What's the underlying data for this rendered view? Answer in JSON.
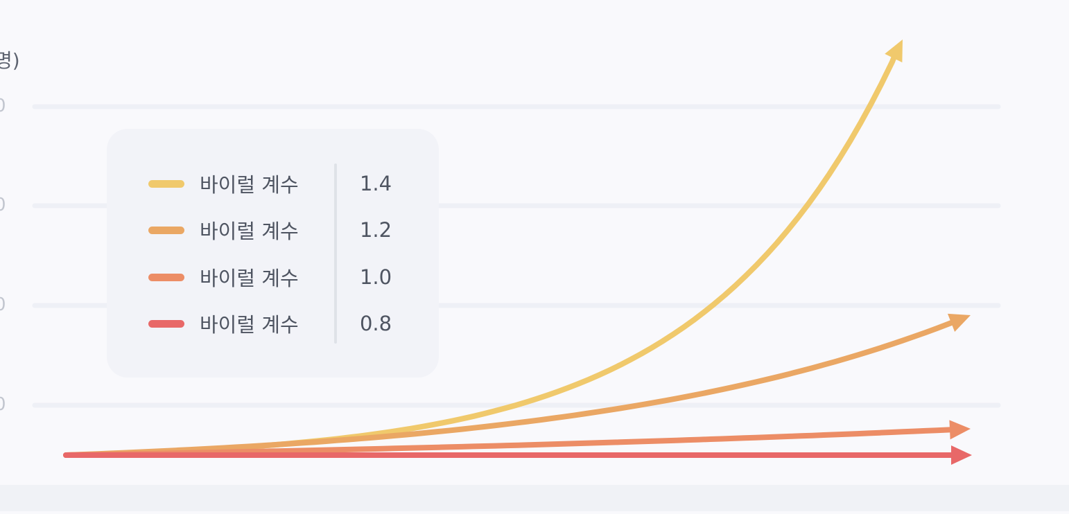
{
  "chart_data": {
    "type": "line",
    "title": "",
    "ylabel": "명)",
    "xlabel": "",
    "y_tick_labels": [
      "0",
      "0",
      "0",
      "0"
    ],
    "grid": true,
    "legend_position": "top-left",
    "legend_label": "바이럴 계수",
    "series": [
      {
        "name": "바이럴 계수",
        "coefficient": "1.4",
        "color": "#f0c96c"
      },
      {
        "name": "바이럴 계수",
        "coefficient": "1.2",
        "color": "#eaa764"
      },
      {
        "name": "바이럴 계수",
        "coefficient": "1.0",
        "color": "#ec8d66"
      },
      {
        "name": "바이럴 계수",
        "coefficient": "0.8",
        "color": "#e86868"
      }
    ]
  },
  "colors": {
    "background": "#f9f9fc",
    "gridline": "#eef0f6",
    "legend_bg": "#f2f3f8"
  }
}
